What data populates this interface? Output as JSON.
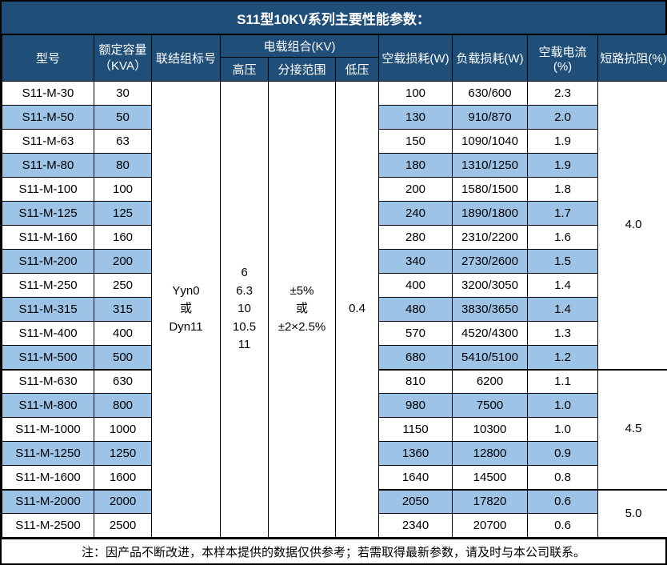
{
  "title": "S11型10KV系列主要性能参数：",
  "colors": {
    "header_bg": "#1F4E79",
    "alt_row_bg": "#9DC3E6",
    "border": "#000000",
    "header_text": "#FFFFFF",
    "body_text": "#000000"
  },
  "table": {
    "header": {
      "model": "型号",
      "capacity": "额定容量\n（KVA）",
      "connection": "联结组标号",
      "voltage_group": "电载组合(KV)",
      "high_voltage": "高压",
      "tap_range": "分接范围",
      "low_voltage": "低压",
      "no_load_loss": "空载损耗(W)",
      "load_loss": "负载损耗(W)",
      "no_load_current": "空载电流(%)",
      "impedance": "短路抗阻(%)"
    },
    "merged": {
      "connection": "Yyn0\n或\nDyn11",
      "high_voltage": "6\n6.3\n10\n10.5\n11",
      "tap_range": "±5%\n或\n±2×2.5%",
      "low_voltage": "0.4"
    },
    "rows": [
      {
        "model": "S11-M-30",
        "capacity": "30",
        "no_load_loss": "100",
        "load_loss": "630/600",
        "no_load_current": "2.3"
      },
      {
        "model": "S11-M-50",
        "capacity": "50",
        "no_load_loss": "130",
        "load_loss": "910/870",
        "no_load_current": "2.0"
      },
      {
        "model": "S11-M-63",
        "capacity": "63",
        "no_load_loss": "150",
        "load_loss": "1090/1040",
        "no_load_current": "1.9"
      },
      {
        "model": "S11-M-80",
        "capacity": "80",
        "no_load_loss": "180",
        "load_loss": "1310/1250",
        "no_load_current": "1.9"
      },
      {
        "model": "S11-M-100",
        "capacity": "100",
        "no_load_loss": "200",
        "load_loss": "1580/1500",
        "no_load_current": "1.8"
      },
      {
        "model": "S11-M-125",
        "capacity": "125",
        "no_load_loss": "240",
        "load_loss": "1890/1800",
        "no_load_current": "1.7"
      },
      {
        "model": "S11-M-160",
        "capacity": "160",
        "no_load_loss": "280",
        "load_loss": "2310/2200",
        "no_load_current": "1.6"
      },
      {
        "model": "S11-M-200",
        "capacity": "200",
        "no_load_loss": "340",
        "load_loss": "2730/2600",
        "no_load_current": "1.5"
      },
      {
        "model": "S11-M-250",
        "capacity": "250",
        "no_load_loss": "400",
        "load_loss": "3200/3050",
        "no_load_current": "1.4"
      },
      {
        "model": "S11-M-315",
        "capacity": "315",
        "no_load_loss": "480",
        "load_loss": "3830/3650",
        "no_load_current": "1.4"
      },
      {
        "model": "S11-M-400",
        "capacity": "400",
        "no_load_loss": "570",
        "load_loss": "4520/4300",
        "no_load_current": "1.3"
      },
      {
        "model": "S11-M-500",
        "capacity": "500",
        "no_load_loss": "680",
        "load_loss": "5410/5100",
        "no_load_current": "1.2"
      },
      {
        "model": "S11-M-630",
        "capacity": "630",
        "no_load_loss": "810",
        "load_loss": "6200",
        "no_load_current": "1.1"
      },
      {
        "model": "S11-M-800",
        "capacity": "800",
        "no_load_loss": "980",
        "load_loss": "7500",
        "no_load_current": "1.0"
      },
      {
        "model": "S11-M-1000",
        "capacity": "1000",
        "no_load_loss": "1150",
        "load_loss": "10300",
        "no_load_current": "1.0"
      },
      {
        "model": "S11-M-1250",
        "capacity": "1250",
        "no_load_loss": "1360",
        "load_loss": "12800",
        "no_load_current": "0.9"
      },
      {
        "model": "S11-M-1600",
        "capacity": "1600",
        "no_load_loss": "1640",
        "load_loss": "14500",
        "no_load_current": "0.8"
      },
      {
        "model": "S11-M-2000",
        "capacity": "2000",
        "no_load_loss": "2050",
        "load_loss": "17820",
        "no_load_current": "0.6"
      },
      {
        "model": "S11-M-2500",
        "capacity": "2500",
        "no_load_loss": "2340",
        "load_loss": "20700",
        "no_load_current": "0.6"
      }
    ],
    "impedance_groups": [
      {
        "value": "4.0",
        "span": 12
      },
      {
        "value": "4.5",
        "span": 5
      },
      {
        "value": "5.0",
        "span": 2
      }
    ]
  },
  "footnote": "注：因产品不断改进，本样本提供的数据仅供参考；若需取得最新参数，请及时与本公司联系。"
}
